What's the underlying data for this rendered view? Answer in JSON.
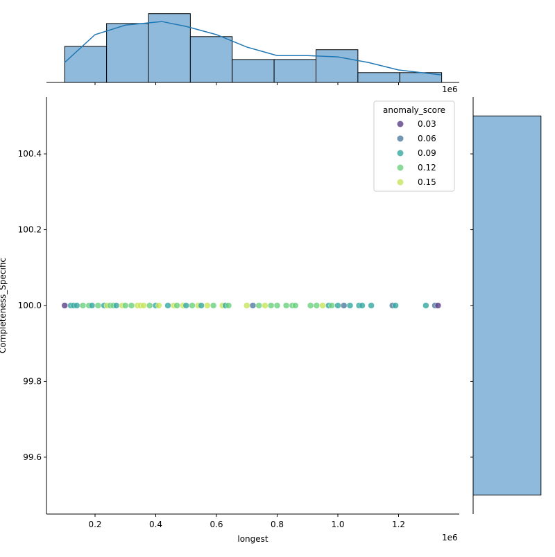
{
  "chart_data": [
    {
      "type": "scatter",
      "x_label": "longest",
      "y_label": "Completeness_Specific",
      "x_offset_label": "1e6",
      "xlim": [
        0.04,
        1.4
      ],
      "ylim": [
        99.45,
        100.55
      ],
      "xticks": [
        0.2,
        0.4,
        0.6,
        0.8,
        {
          "value": 1.0,
          "label": "1.0"
        },
        1.2
      ],
      "yticks": [
        99.6,
        99.8,
        {
          "value": 100,
          "label": "100.0"
        },
        100.2,
        100.4
      ],
      "x": [
        0.1,
        0.12,
        0.13,
        0.14,
        0.16,
        0.18,
        0.19,
        0.21,
        0.23,
        0.24,
        0.25,
        0.26,
        0.27,
        0.29,
        0.3,
        0.32,
        0.34,
        0.35,
        0.36,
        0.38,
        0.4,
        0.41,
        0.44,
        0.46,
        0.47,
        0.49,
        0.5,
        0.52,
        0.54,
        0.55,
        0.57,
        0.59,
        0.62,
        0.63,
        0.64,
        0.7,
        0.72,
        0.74,
        0.76,
        0.78,
        0.8,
        0.83,
        0.85,
        0.86,
        0.91,
        0.93,
        0.95,
        0.97,
        0.98,
        1.0,
        1.02,
        1.04,
        1.07,
        1.08,
        1.11,
        1.18,
        1.19,
        1.29,
        1.32,
        1.33
      ],
      "y": [
        100,
        100,
        100,
        100,
        100,
        100,
        100,
        100,
        100,
        100,
        100,
        100,
        100,
        100,
        100,
        100,
        100,
        100,
        100,
        100,
        100,
        100,
        100,
        100,
        100,
        100,
        100,
        100,
        100,
        100,
        100,
        100,
        100,
        100,
        100,
        100,
        100,
        100,
        100,
        100,
        100,
        100,
        100,
        100,
        100,
        100,
        100,
        100,
        100,
        100,
        100,
        100,
        100,
        100,
        100,
        100,
        100,
        100,
        100,
        100
      ],
      "hue": [
        0.03,
        0.09,
        0.09,
        0.09,
        0.12,
        0.12,
        0.09,
        0.12,
        0.09,
        0.15,
        0.12,
        0.12,
        0.09,
        0.15,
        0.12,
        0.12,
        0.15,
        0.15,
        0.15,
        0.12,
        0.09,
        0.15,
        0.09,
        0.15,
        0.12,
        0.15,
        0.09,
        0.12,
        0.15,
        0.09,
        0.15,
        0.12,
        0.15,
        0.09,
        0.12,
        0.15,
        0.06,
        0.12,
        0.15,
        0.12,
        0.12,
        0.12,
        0.12,
        0.12,
        0.12,
        0.12,
        0.15,
        0.09,
        0.12,
        0.09,
        0.06,
        0.09,
        0.09,
        0.09,
        0.09,
        0.06,
        0.09,
        0.09,
        0.06,
        0.03
      ],
      "legend": {
        "title": "anomaly_score",
        "position": "upper right",
        "values": [
          0.03,
          0.06,
          0.09,
          0.12,
          0.15
        ],
        "colors": [
          "#5b3f86",
          "#4f7a9f",
          "#36a8a0",
          "#6ccf7f",
          "#c7e55a"
        ]
      }
    },
    {
      "type": "histogram",
      "orientation": "vertical",
      "color": "#8fbadb",
      "x_offset_label": "1e6",
      "bins": [
        0.1,
        0.238,
        0.376,
        0.514,
        0.652,
        0.79,
        0.928,
        1.066,
        1.204,
        1.342
      ],
      "counts": [
        11,
        18,
        21,
        14,
        7,
        7,
        10,
        3,
        3
      ],
      "ylim": [
        0,
        22
      ],
      "kde": {
        "color": "#1f77b4",
        "x": [
          0.1,
          0.2,
          0.3,
          0.42,
          0.5,
          0.6,
          0.7,
          0.8,
          0.9,
          1.0,
          1.1,
          1.2,
          1.34
        ],
        "y": [
          6.1,
          14.6,
          17.5,
          18.6,
          17.1,
          14.6,
          10.8,
          8.2,
          8.2,
          7.8,
          6.1,
          3.8,
          2.3
        ]
      }
    },
    {
      "type": "histogram",
      "orientation": "horizontal",
      "color": "#8fbadb",
      "bins": [
        99.5,
        100.5
      ],
      "counts": [
        94
      ],
      "xlim": [
        0,
        99
      ]
    }
  ]
}
